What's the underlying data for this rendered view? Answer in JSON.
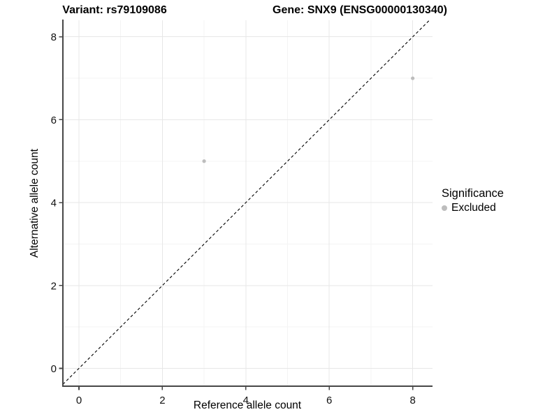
{
  "chart_data": {
    "type": "scatter",
    "titles": {
      "left": "Variant: rs79109086",
      "right": "Gene: SNX9 (ENSG00000130340)"
    },
    "xlabel": "Reference allele count",
    "ylabel": "Alternative allele count",
    "x_ticks": [
      0,
      2,
      4,
      6,
      8
    ],
    "y_ticks": [
      0,
      2,
      4,
      6,
      8
    ],
    "x_minor_ticks": [
      1,
      3,
      5,
      7
    ],
    "y_minor_ticks": [
      1,
      3,
      5,
      7
    ],
    "xlim": [
      -0.385,
      8.475
    ],
    "ylim": [
      -0.43,
      8.4
    ],
    "grid": true,
    "identity_line": {
      "shown": true,
      "style": "dashed",
      "color": "#000000"
    },
    "series": [
      {
        "name": "Excluded",
        "color": "#bdbdbd",
        "points": [
          {
            "x": 3,
            "y": 5
          },
          {
            "x": 8,
            "y": 7
          }
        ]
      }
    ],
    "legend": {
      "title": "Significance",
      "position": "right",
      "entries": [
        {
          "label": "Excluded",
          "color": "#bdbdbd"
        }
      ]
    },
    "colors": {
      "grid_major": "#e7e7e7",
      "grid_minor": "#f4f4f4",
      "axis": "#474747",
      "tick_label": "#111111"
    }
  }
}
